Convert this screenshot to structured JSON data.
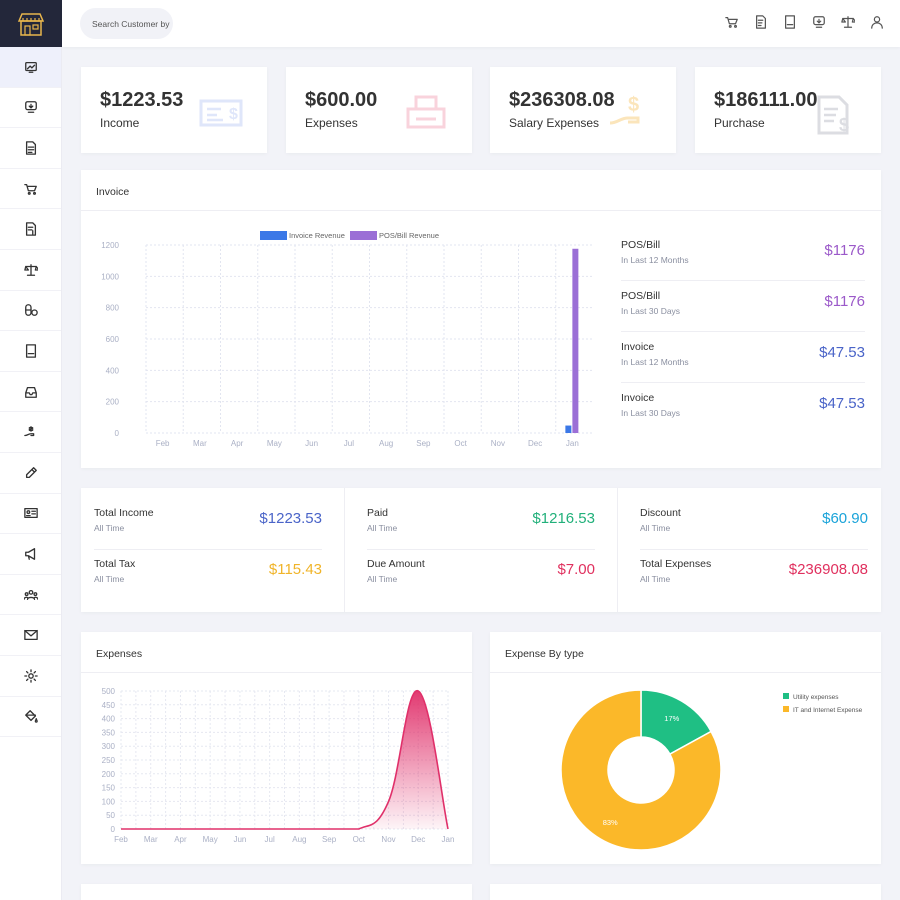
{
  "search": {
    "placeholder": "Search Customer by"
  },
  "sidebar": {
    "items": [
      {
        "icon": "dashboard-icon"
      },
      {
        "icon": "invoice-icon"
      },
      {
        "icon": "document-icon"
      },
      {
        "icon": "cart-icon"
      },
      {
        "icon": "bill-icon"
      },
      {
        "icon": "scale-icon"
      },
      {
        "icon": "pills-icon"
      },
      {
        "icon": "book-icon"
      },
      {
        "icon": "inbox-icon"
      },
      {
        "icon": "salary-icon"
      },
      {
        "icon": "pen-icon"
      },
      {
        "icon": "id-card-icon"
      },
      {
        "icon": "megaphone-icon"
      },
      {
        "icon": "users-icon"
      },
      {
        "icon": "mail-icon"
      },
      {
        "icon": "gear-icon"
      },
      {
        "icon": "paint-bucket-icon"
      }
    ]
  },
  "stats": [
    {
      "amount": "$1223.53",
      "label": "Income",
      "icon": "check-icon",
      "color": "#dfe6fa"
    },
    {
      "amount": "$600.00",
      "label": "Expenses",
      "icon": "printer-icon",
      "color": "#f9d3dc"
    },
    {
      "amount": "$236308.08",
      "label": "Salary Expenses",
      "icon": "salary-hand-icon",
      "color": "#fbe5bb"
    },
    {
      "amount": "$186111.00",
      "label": "Purchase",
      "icon": "bill-icon",
      "color": "#dcdde2"
    }
  ],
  "invoice": {
    "title": "Invoice",
    "side": [
      {
        "title": "POS/Bill",
        "sub": "In Last 12 Months",
        "value": "$1176",
        "color": "#9b59c9"
      },
      {
        "title": "POS/Bill",
        "sub": "In Last 30 Days",
        "value": "$1176",
        "color": "#9b59c9"
      },
      {
        "title": "Invoice",
        "sub": "In Last 12 Months",
        "value": "$47.53",
        "color": "#4a64c8"
      },
      {
        "title": "Invoice",
        "sub": "In Last 30 Days",
        "value": "$47.53",
        "color": "#4a64c8"
      }
    ]
  },
  "metrics": [
    {
      "title": "Total Income",
      "sub": "All Time",
      "value": "$1223.53",
      "color": "#4a64c8"
    },
    {
      "title": "Total Tax",
      "sub": "All Time",
      "value": "$115.43",
      "color": "#f0b429"
    },
    {
      "title": "Paid",
      "sub": "All Time",
      "value": "$1216.53",
      "color": "#21b07a"
    },
    {
      "title": "Due Amount",
      "sub": "All Time",
      "value": "$7.00",
      "color": "#e0305e"
    },
    {
      "title": "Discount",
      "sub": "All Time",
      "value": "$60.90",
      "color": "#1aa3d9"
    },
    {
      "title": "Total Expenses",
      "sub": "All Time",
      "value": "$236908.08",
      "color": "#e0305e"
    }
  ],
  "expenses": {
    "title": "Expenses"
  },
  "expense_type": {
    "title": "Expense By type"
  },
  "chart_data": [
    {
      "type": "bar",
      "categories": [
        "Feb",
        "Mar",
        "Apr",
        "May",
        "Jun",
        "Jul",
        "Aug",
        "Sep",
        "Oct",
        "Nov",
        "Dec",
        "Jan"
      ],
      "series": [
        {
          "name": "Invoice Revenue",
          "values": [
            0,
            0,
            0,
            0,
            0,
            0,
            0,
            0,
            0,
            0,
            0,
            47.53
          ],
          "color": "#3b78e7"
        },
        {
          "name": "POS/Bill Revenue",
          "values": [
            0,
            0,
            0,
            0,
            0,
            0,
            0,
            0,
            0,
            0,
            0,
            1176
          ],
          "color": "#9b6fd6"
        }
      ],
      "ylim": [
        0,
        1200
      ],
      "yticks": [
        0,
        200,
        400,
        600,
        800,
        1000,
        1200
      ],
      "grid": true,
      "legend": "top"
    },
    {
      "type": "area",
      "categories": [
        "Feb",
        "Mar",
        "Apr",
        "May",
        "Jun",
        "Jul",
        "Aug",
        "Sep",
        "Oct",
        "Nov",
        "Dec",
        "Jan"
      ],
      "series": [
        {
          "values": [
            0,
            0,
            0,
            0,
            0,
            0,
            0,
            0,
            0,
            100,
            500,
            0
          ],
          "color": "#e0306a"
        }
      ],
      "ylim": [
        0,
        500
      ],
      "yticks": [
        0,
        50,
        100,
        150,
        200,
        250,
        300,
        350,
        400,
        450,
        500
      ],
      "grid": true
    },
    {
      "type": "pie",
      "donut": true,
      "slices": [
        {
          "name": "Utility expenses",
          "value": 17,
          "label": "17%",
          "color": "#1fbf84"
        },
        {
          "name": "IT and Internet Expense",
          "value": 83,
          "label": "83%",
          "color": "#fbb829"
        }
      ],
      "legend": "top-right"
    }
  ]
}
